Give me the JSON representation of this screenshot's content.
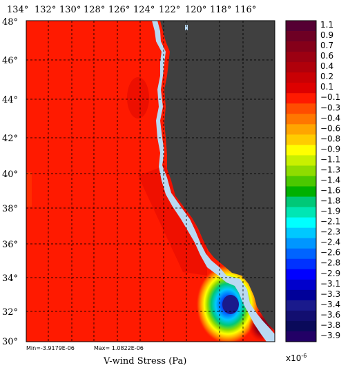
{
  "map": {
    "title": "V-wind Stress (Pa)",
    "stats_min": "Min=-3.9179E-06",
    "stats_max": "Max= 1.0822E-06",
    "lon_labels": [
      "134°",
      "132°",
      "130°",
      "128°",
      "126°",
      "124°",
      "122°",
      "120°",
      "118°",
      "116°"
    ],
    "lat_labels": [
      "48°",
      "46°",
      "44°",
      "42°",
      "40°",
      "38°",
      "36°",
      "34°",
      "32°",
      "30°"
    ],
    "colors": {
      "ocean_base": "#ff1a00",
      "land": "#404040",
      "coast": "#b9d9f2"
    }
  },
  "colorbar": {
    "exponent_label": "x10",
    "exponent_sup": "-6",
    "labels": [
      "1.1",
      "0.9",
      "0.7",
      "0.6",
      "0.4",
      "0.2",
      "0.1",
      "−0.1",
      "−0.3",
      "−0.4",
      "−0.6",
      "−0.8",
      "−0.9",
      "−1.1",
      "−1.3",
      "−1.4",
      "−1.6",
      "−1.8",
      "−1.9",
      "−2.1",
      "−2.3",
      "−2.4",
      "−2.6",
      "−2.8",
      "−2.9",
      "−3.1",
      "−3.3",
      "−3.4",
      "−3.6",
      "−3.8",
      "−3.9"
    ],
    "colors": [
      "#550033",
      "#6e0024",
      "#850019",
      "#9c0012",
      "#b0000b",
      "#c90004",
      "#de0000",
      "#ff1a00",
      "#ff4d00",
      "#ff7700",
      "#ffa500",
      "#ffcc00",
      "#ffff00",
      "#c8f000",
      "#8fdc00",
      "#4cc800",
      "#00b000",
      "#00c878",
      "#00e6b4",
      "#00ffff",
      "#00c8ff",
      "#0096ff",
      "#0064ff",
      "#0032ff",
      "#0000ff",
      "#0000cc",
      "#000099",
      "#1a1a8c",
      "#120e70",
      "#0a0a5a",
      "#220066"
    ]
  }
}
